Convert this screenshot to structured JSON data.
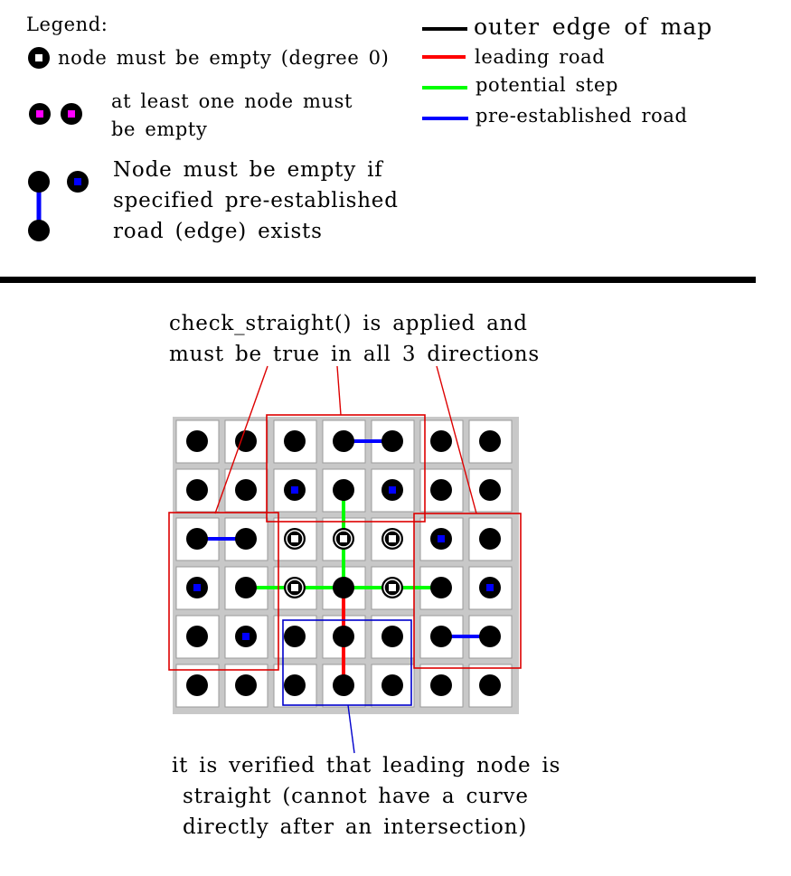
{
  "legend": {
    "title": "Legend:",
    "empty_node_text": "node must be empty (degree 0)",
    "one_empty_text_1": "at least one node must",
    "one_empty_text_2": "be empty",
    "conditional_text_1": "Node must be empty if",
    "conditional_text_2": "specified pre-established",
    "conditional_text_3": "road (edge) exists",
    "outer_edge_text": "outer edge of map",
    "leading_road_text": "leading road",
    "potential_step_text": "potential step",
    "pre_established_text": "pre-established road"
  },
  "annotations": {
    "check_straight_line_1": "check_straight() is applied and",
    "check_straight_line_2": "must be true in all 3 directions",
    "verified_line_1": "it is verified that leading node is",
    "verified_line_2": "straight (cannot have a curve",
    "verified_line_3": "directly after an intersection)"
  },
  "colors": {
    "outer_edge": "#000000",
    "leading_road": "#ff0000",
    "potential_step": "#00ff00",
    "pre_established": "#0000ff",
    "one_empty_marker": "#ff00ff",
    "empty_marker": "#ffffff",
    "check_box": "#dd0000",
    "verify_box": "#0000cc",
    "grid_background": "#c8c8c8",
    "cell": "#ffffff",
    "node": "#000000"
  },
  "grid": {
    "columns": 7,
    "rows": 6,
    "white_markers": [
      [
        2,
        2
      ],
      [
        3,
        2
      ],
      [
        4,
        2
      ],
      [
        2,
        3
      ],
      [
        4,
        3
      ]
    ],
    "blue_markers": [
      [
        2,
        1
      ],
      [
        4,
        1
      ],
      [
        5,
        2
      ],
      [
        0,
        3
      ],
      [
        6,
        3
      ],
      [
        1,
        4
      ]
    ],
    "pre_established_roads": [
      {
        "from": [
          3,
          0
        ],
        "to": [
          4,
          0
        ]
      },
      {
        "from": [
          0,
          2
        ],
        "to": [
          1,
          2
        ]
      },
      {
        "from": [
          5,
          4
        ],
        "to": [
          6,
          4
        ]
      }
    ],
    "potential_steps": [
      {
        "from": [
          3,
          1
        ],
        "to": [
          3,
          3
        ]
      },
      {
        "from": [
          1,
          3
        ],
        "to": [
          5,
          3
        ]
      }
    ],
    "leading_road": {
      "from": [
        3,
        3
      ],
      "to": [
        3,
        5
      ]
    }
  }
}
